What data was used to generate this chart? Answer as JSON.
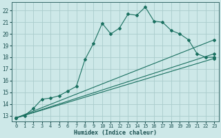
{
  "xlabel": "Humidex (Indice chaleur)",
  "bg_color": "#cde8e8",
  "line_color": "#1a7060",
  "grid_color": "#aacccc",
  "xlim": [
    -0.5,
    23.5
  ],
  "ylim": [
    12.5,
    22.7
  ],
  "xticks": [
    0,
    1,
    2,
    3,
    4,
    5,
    6,
    7,
    8,
    9,
    10,
    11,
    12,
    13,
    14,
    15,
    16,
    17,
    18,
    19,
    20,
    21,
    22,
    23
  ],
  "yticks": [
    13,
    14,
    15,
    16,
    17,
    18,
    19,
    20,
    21,
    22
  ],
  "lines": [
    {
      "x": [
        0,
        1,
        2,
        3,
        4,
        5,
        6,
        7,
        8,
        9,
        10,
        11,
        12,
        13,
        14,
        15,
        16,
        17,
        18,
        19,
        20,
        21,
        22,
        23
      ],
      "y": [
        12.8,
        13.0,
        13.6,
        14.4,
        14.5,
        14.7,
        15.1,
        15.5,
        17.8,
        19.2,
        20.9,
        20.0,
        20.5,
        21.7,
        21.6,
        22.3,
        21.1,
        21.0,
        20.3,
        20.0,
        19.5,
        18.3,
        18.0,
        18.0
      ]
    },
    {
      "x": [
        0,
        23
      ],
      "y": [
        12.8,
        19.5
      ]
    },
    {
      "x": [
        0,
        23
      ],
      "y": [
        12.8,
        18.3
      ]
    },
    {
      "x": [
        0,
        23
      ],
      "y": [
        12.8,
        17.9
      ]
    }
  ]
}
